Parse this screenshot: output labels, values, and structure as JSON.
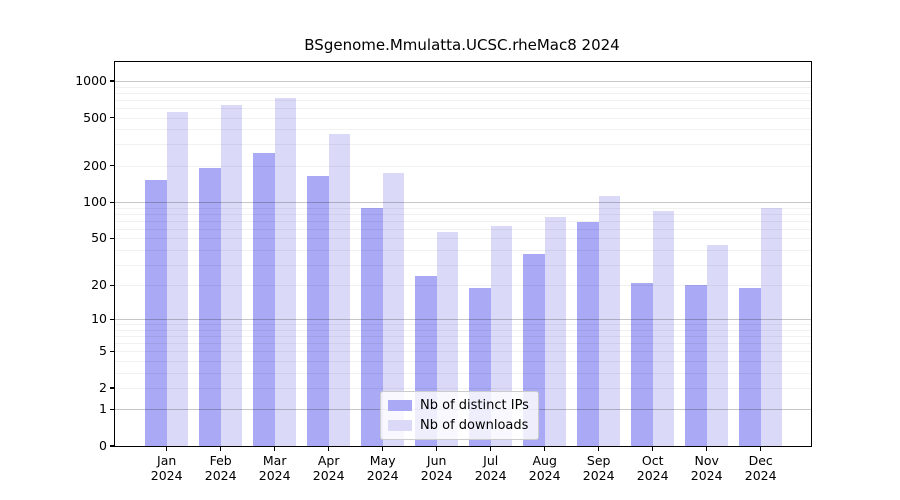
{
  "title": "BSgenome.Mmulatta.UCSC.rheMac8 2024",
  "chart_data": {
    "type": "bar",
    "title": "BSgenome.Mmulatta.UCSC.rheMac8 2024",
    "yscale": "log1p",
    "ylim": [
      0,
      1400
    ],
    "yticks": [
      0,
      1,
      2,
      5,
      10,
      20,
      50,
      100,
      200,
      500,
      1000
    ],
    "grid": "horizontal major decades + log minor lines, drawn over bars",
    "legend_position": "inside bottom-center",
    "categories": [
      "Jan",
      "Feb",
      "Mar",
      "Apr",
      "May",
      "Jun",
      "Jul",
      "Aug",
      "Sep",
      "Oct",
      "Nov",
      "Dec"
    ],
    "year_label": "2024",
    "series": [
      {
        "name": "Nb of distinct IPs",
        "color": "#a9a9f5",
        "values": [
          152,
          191,
          254,
          165,
          89,
          24,
          19,
          37,
          69,
          21,
          20,
          19
        ]
      },
      {
        "name": "Nb of downloads",
        "color": "#dadaf8",
        "values": [
          557,
          630,
          730,
          365,
          174,
          56,
          63,
          75,
          113,
          85,
          44,
          89
        ]
      }
    ]
  }
}
